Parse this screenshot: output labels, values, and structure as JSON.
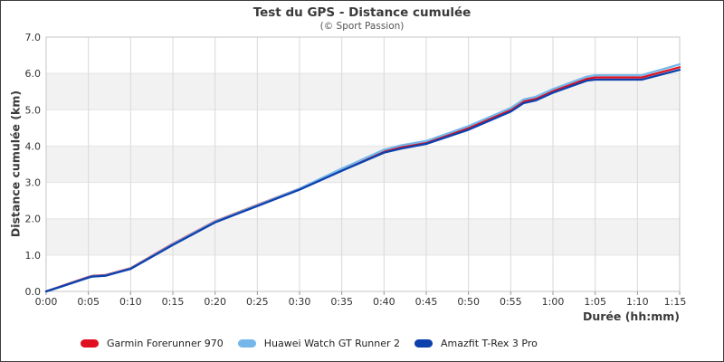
{
  "chart_data": {
    "type": "line",
    "title": "Test du GPS - Distance cumulée",
    "subtitle": "(© Sport Passion)",
    "xlabel": "Durée (hh:mm)",
    "ylabel": "Distance cumulée (km)",
    "xlim_minutes": [
      0,
      75
    ],
    "ylim": [
      0,
      7
    ],
    "x_tick_minutes": [
      0,
      5,
      10,
      15,
      20,
      25,
      30,
      35,
      40,
      45,
      50,
      55,
      60,
      65,
      70,
      75
    ],
    "x_tick_labels": [
      "0:00",
      "0:05",
      "0:10",
      "0:15",
      "0:20",
      "0:25",
      "0:30",
      "0:35",
      "0:40",
      "0:45",
      "0:50",
      "0:55",
      "1:00",
      "1:05",
      "1:10",
      "1:15"
    ],
    "y_tick_values": [
      0,
      1,
      2,
      3,
      4,
      5,
      6,
      7
    ],
    "y_tick_labels": [
      "0.0",
      "1.0",
      "2.0",
      "3.0",
      "4.0",
      "5.0",
      "6.0",
      "7.0"
    ],
    "grid": true,
    "legend_position": "bottom-left",
    "x_minutes": [
      0,
      2,
      5,
      5.5,
      7,
      10,
      15,
      20,
      25,
      30,
      35,
      40,
      42,
      45,
      50,
      55,
      56.5,
      58,
      60,
      64,
      65,
      70.5,
      75
    ],
    "series": [
      {
        "name": "Garmin Forerunner 970",
        "color": "#e01020",
        "values": [
          0,
          0.16,
          0.4,
          0.43,
          0.45,
          0.64,
          1.31,
          1.93,
          2.38,
          2.83,
          3.36,
          3.86,
          3.97,
          4.1,
          4.5,
          5.0,
          5.23,
          5.31,
          5.52,
          5.85,
          5.89,
          5.89,
          6.17
        ]
      },
      {
        "name": "Huawei Watch GT Runner 2",
        "color": "#76b7ea",
        "values": [
          0,
          0.15,
          0.39,
          0.42,
          0.44,
          0.63,
          1.3,
          1.92,
          2.37,
          2.83,
          3.38,
          3.9,
          4.02,
          4.14,
          4.55,
          5.05,
          5.28,
          5.36,
          5.57,
          5.91,
          5.95,
          5.95,
          6.25
        ]
      },
      {
        "name": "Amazfit T-Rex 3 Pro",
        "color": "#0c41ad",
        "values": [
          0,
          0.15,
          0.38,
          0.41,
          0.43,
          0.62,
          1.28,
          1.9,
          2.35,
          2.8,
          3.32,
          3.82,
          3.93,
          4.06,
          4.45,
          4.95,
          5.18,
          5.26,
          5.47,
          5.8,
          5.83,
          5.83,
          6.1
        ]
      }
    ],
    "colors": {
      "band_even": "#ffffff",
      "band_odd": "#f2f2f2",
      "v_grid": "#d9d9d9",
      "h_grid": "#e4e4e4",
      "plot_border": "#c6c6c6",
      "tick_mark": "#999999",
      "tick_label": "#333333"
    }
  }
}
